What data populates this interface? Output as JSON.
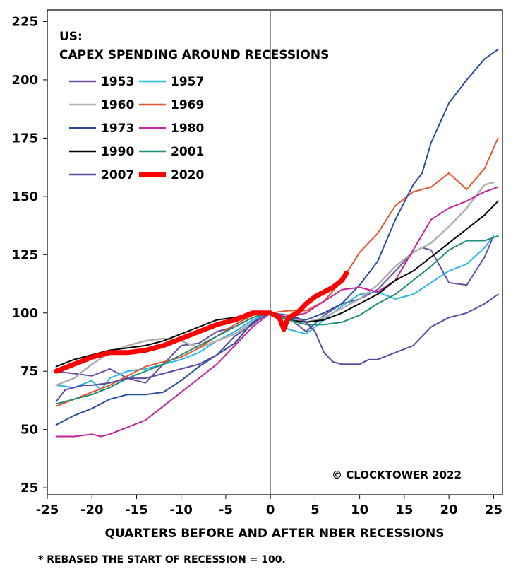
{
  "chart_data": {
    "type": "line",
    "title_line1": "US:",
    "title_line2": "CAPEX SPENDING AROUND RECESSIONS",
    "xlabel": "QUARTERS BEFORE AND AFTER NBER RECESSIONS",
    "footnote": "* REBASED THE START OF RECESSION = 100.",
    "copyright": "© CLOCKTOWER 2022",
    "xlim": [
      -25,
      26
    ],
    "ylim": [
      22,
      230
    ],
    "x_ticks": [
      -25,
      -20,
      -15,
      -10,
      -5,
      0,
      5,
      10,
      15,
      20,
      25
    ],
    "y_ticks": [
      25,
      50,
      75,
      100,
      125,
      150,
      175,
      200,
      225
    ],
    "x_tick_labels": [
      "-25",
      "-20",
      "-15",
      "-10",
      "-5",
      "0",
      "5",
      "10",
      "15",
      "20",
      "25"
    ],
    "y_tick_labels": [
      "25",
      "50",
      "75",
      "100",
      "125",
      "150",
      "175",
      "200",
      "225"
    ],
    "series": [
      {
        "name": "1953",
        "color": "#6a4fa3",
        "width": 2,
        "x": [
          -24,
          -22,
          -20,
          -18,
          -16,
          -14,
          -12,
          -10,
          -8,
          -6,
          -4,
          -2,
          0,
          2,
          4,
          6,
          8,
          10,
          12,
          14,
          16,
          17,
          18,
          20,
          22,
          24,
          25
        ],
        "y": [
          75,
          74,
          73,
          76,
          72,
          70,
          78,
          86,
          87,
          92,
          94,
          98,
          100,
          98,
          92,
          99,
          104,
          106,
          110,
          118,
          126,
          128,
          127,
          113,
          112,
          124,
          133
        ]
      },
      {
        "name": "1957",
        "color": "#2eb8e6",
        "width": 2,
        "x": [
          -24,
          -22,
          -20,
          -19,
          -18,
          -16,
          -14,
          -12,
          -10,
          -8,
          -6,
          -4,
          -2,
          0,
          2,
          4,
          6,
          8,
          10,
          12,
          14,
          16,
          18,
          20,
          22,
          24,
          25
        ],
        "y": [
          69,
          68,
          71,
          67,
          72,
          75,
          76,
          78,
          80,
          83,
          88,
          92,
          97,
          100,
          93,
          91,
          97,
          103,
          108,
          109,
          106,
          108,
          113,
          118,
          121,
          128,
          133
        ]
      },
      {
        "name": "1960",
        "color": "#b0b0b0",
        "width": 2.5,
        "x": [
          -24,
          -22,
          -20,
          -18,
          -16,
          -14,
          -12,
          -10,
          -8,
          -6,
          -4,
          -2,
          0,
          2,
          4,
          6,
          8,
          10,
          12,
          14,
          16,
          18,
          20,
          22,
          24,
          25
        ],
        "y": [
          69,
          72,
          78,
          83,
          86,
          88,
          89,
          88,
          85,
          88,
          91,
          96,
          100,
          98,
          96,
          98,
          102,
          106,
          112,
          120,
          126,
          130,
          137,
          145,
          155,
          156
        ]
      },
      {
        "name": "1969",
        "color": "#e4572e",
        "width": 2,
        "x": [
          -24,
          -22,
          -20,
          -18,
          -16,
          -14,
          -12,
          -10,
          -8,
          -6,
          -4,
          -2,
          0,
          2,
          4,
          6,
          8,
          10,
          12,
          14,
          16,
          18,
          20,
          22,
          24,
          25.5
        ],
        "y": [
          60,
          63,
          66,
          69,
          73,
          77,
          79,
          81,
          85,
          90,
          95,
          99,
          100,
          101,
          101,
          105,
          114,
          126,
          134,
          146,
          152,
          154,
          160,
          153,
          162,
          175
        ]
      },
      {
        "name": "1973",
        "color": "#2a4d9a",
        "width": 2,
        "x": [
          -24,
          -22,
          -20,
          -18,
          -16,
          -14,
          -12,
          -10,
          -8,
          -6,
          -4,
          -2,
          0,
          2,
          4,
          6,
          8,
          10,
          12,
          14,
          16,
          17,
          18,
          20,
          22,
          24,
          25.5
        ],
        "y": [
          52,
          56,
          59,
          63,
          65,
          65,
          66,
          71,
          77,
          82,
          87,
          96,
          100,
          98,
          97,
          100,
          104,
          112,
          122,
          140,
          155,
          160,
          173,
          190,
          200,
          209,
          213
        ]
      },
      {
        "name": "1980",
        "color": "#c4259b",
        "width": 2,
        "x": [
          -24,
          -22,
          -20,
          -19,
          -18,
          -16,
          -14,
          -12,
          -10,
          -8,
          -6,
          -4,
          -2,
          0,
          2,
          4,
          6,
          8,
          10,
          12,
          14,
          16,
          18,
          20,
          22,
          24,
          25.5
        ],
        "y": [
          47,
          47,
          48,
          47,
          48,
          51,
          54,
          60,
          66,
          72,
          78,
          86,
          94,
          100,
          98,
          100,
          105,
          110,
          111,
          109,
          114,
          127,
          140,
          145,
          148,
          152,
          154
        ]
      },
      {
        "name": "1990",
        "color": "#000000",
        "width": 2,
        "x": [
          -24,
          -22,
          -20,
          -18,
          -16,
          -14,
          -12,
          -10,
          -8,
          -6,
          -4,
          -2,
          0,
          2,
          4,
          6,
          8,
          10,
          12,
          14,
          16,
          18,
          20,
          22,
          24,
          25.5
        ],
        "y": [
          77,
          80,
          82,
          84,
          85,
          86,
          88,
          91,
          94,
          97,
          98,
          100,
          100,
          97,
          96,
          97,
          100,
          104,
          108,
          114,
          118,
          124,
          130,
          136,
          142,
          148
        ]
      },
      {
        "name": "2001",
        "color": "#1f8f7a",
        "width": 2,
        "x": [
          -24,
          -22,
          -20,
          -18,
          -16,
          -14,
          -12,
          -10,
          -8,
          -6,
          -4,
          -2,
          0,
          2,
          4,
          6,
          8,
          10,
          12,
          14,
          16,
          18,
          20,
          22,
          24,
          25.5
        ],
        "y": [
          61,
          63,
          65,
          68,
          72,
          75,
          78,
          82,
          86,
          90,
          94,
          98,
          100,
          97,
          95,
          95,
          96,
          99,
          104,
          108,
          114,
          120,
          127,
          131,
          131,
          133
        ]
      },
      {
        "name": "2007",
        "color": "#5a4ba3",
        "width": 2,
        "x": [
          -24,
          -23,
          -22,
          -21,
          -20,
          -18,
          -16,
          -14,
          -12,
          -10,
          -8,
          -6,
          -4,
          -2,
          -1,
          0,
          2,
          3,
          4,
          5,
          6,
          7,
          8,
          9,
          10,
          11,
          12,
          14,
          16,
          18,
          20,
          22,
          24,
          25.5
        ],
        "y": [
          62,
          67,
          68,
          69,
          69,
          70,
          72,
          72,
          74,
          76,
          78,
          82,
          90,
          95,
          98,
          100,
          99,
          98,
          96,
          92,
          83,
          79,
          78,
          78,
          78,
          80,
          80,
          83,
          86,
          94,
          98,
          100,
          104,
          108
        ]
      },
      {
        "name": "2020",
        "color": "#ff0000",
        "width": 7,
        "x": [
          -24,
          -22,
          -20,
          -18,
          -16,
          -14,
          -12,
          -10,
          -8,
          -6,
          -4,
          -2,
          0,
          1,
          1.5,
          2,
          3,
          4,
          5,
          6,
          7,
          8,
          8.5
        ],
        "y": [
          75,
          78,
          81,
          83,
          83,
          84,
          86,
          89,
          92,
          95,
          97,
          100,
          100,
          98,
          93,
          98,
          100,
          104,
          107,
          109,
          111,
          114,
          117
        ]
      }
    ],
    "legend": [
      [
        "1953",
        "1957"
      ],
      [
        "1960",
        "1969"
      ],
      [
        "1973",
        "1980"
      ],
      [
        "1990",
        "2001"
      ],
      [
        "2007",
        "2020"
      ]
    ],
    "legend_placement": "top-left",
    "grid": false,
    "zero_line_x": 0
  }
}
